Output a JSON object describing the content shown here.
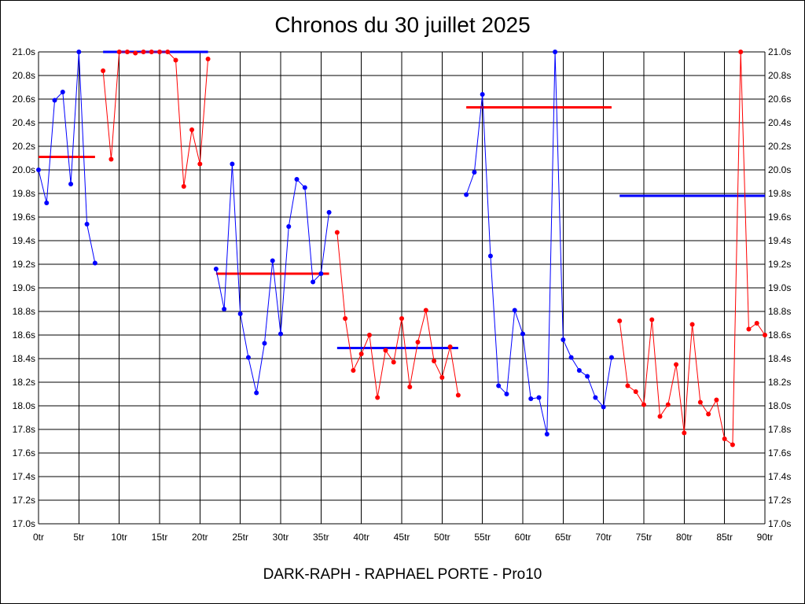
{
  "title": "Chronos du 30 juillet 2025",
  "footer": "DARK-RAPH - RAPHAEL PORTE - Pro10",
  "chart_data": {
    "type": "line",
    "title": "Chronos du 30 juillet 2025",
    "xlabel": "",
    "ylabel": "",
    "xlim": [
      0,
      90
    ],
    "ylim": [
      17.0,
      21.0
    ],
    "grid": true,
    "x_ticks": [
      "0tr",
      "5tr",
      "10tr",
      "15tr",
      "20tr",
      "25tr",
      "30tr",
      "35tr",
      "40tr",
      "45tr",
      "50tr",
      "55tr",
      "60tr",
      "65tr",
      "70tr",
      "75tr",
      "80tr",
      "85tr",
      "90tr"
    ],
    "y_ticks": [
      "17.0s",
      "17.2s",
      "17.4s",
      "17.6s",
      "17.8s",
      "18.0s",
      "18.2s",
      "18.4s",
      "18.6s",
      "18.8s",
      "19.0s",
      "19.2s",
      "19.4s",
      "19.6s",
      "19.8s",
      "20.0s",
      "20.2s",
      "20.4s",
      "20.6s",
      "20.8s",
      "21.0s"
    ],
    "colors": {
      "blue": "#0000ff",
      "red": "#ff0000"
    },
    "series": [
      {
        "color": "blue",
        "x": [
          0,
          1,
          2,
          3,
          4,
          5,
          6,
          7
        ],
        "y": [
          20.0,
          19.72,
          20.59,
          20.66,
          19.88,
          21.0,
          19.54,
          19.21
        ]
      },
      {
        "color": "red",
        "x": [
          8,
          9,
          10,
          11,
          12,
          13,
          14,
          15,
          16,
          17,
          18,
          19,
          20,
          21
        ],
        "y": [
          20.84,
          20.09,
          21.0,
          21.0,
          20.99,
          21.0,
          21.0,
          21.0,
          21.0,
          20.93,
          19.86,
          20.34,
          20.05,
          20.94
        ]
      },
      {
        "color": "blue",
        "x": [
          22,
          23,
          24,
          25,
          26,
          27,
          28,
          29,
          30,
          31,
          32,
          33,
          34,
          35,
          36
        ],
        "y": [
          19.16,
          18.82,
          20.05,
          18.78,
          18.41,
          18.11,
          18.53,
          19.23,
          18.61,
          19.52,
          19.92,
          19.85,
          19.05,
          19.12,
          19.64
        ]
      },
      {
        "color": "red",
        "x": [
          37,
          38,
          39,
          40,
          41,
          42,
          43,
          44,
          45,
          46,
          47,
          48,
          49,
          50,
          51,
          52
        ],
        "y": [
          19.47,
          18.74,
          18.3,
          18.44,
          18.6,
          18.07,
          18.47,
          18.37,
          18.74,
          18.16,
          18.54,
          18.81,
          18.38,
          18.24,
          18.5,
          18.09
        ]
      },
      {
        "color": "blue",
        "x": [
          53,
          54,
          55,
          56,
          57,
          58,
          59,
          60,
          61,
          62,
          63,
          64,
          65,
          66,
          67,
          68,
          69,
          70,
          71
        ],
        "y": [
          19.79,
          19.98,
          20.64,
          19.27,
          18.17,
          18.1,
          18.81,
          18.61,
          18.06,
          18.07,
          17.76,
          21.0,
          18.56,
          18.41,
          18.3,
          18.25,
          18.07,
          17.99,
          18.41
        ]
      },
      {
        "color": "red",
        "x": [
          72,
          73,
          74,
          75,
          76,
          77,
          78,
          79,
          80,
          81,
          82,
          83,
          84,
          85,
          86,
          87,
          88,
          89,
          90
        ],
        "y": [
          18.72,
          18.17,
          18.12,
          18.01,
          18.73,
          17.91,
          18.01,
          18.35,
          17.77,
          18.69,
          18.03,
          17.93,
          18.05,
          17.72,
          17.67,
          21.0,
          18.65,
          18.7,
          18.6
        ]
      }
    ],
    "average_lines": [
      {
        "color": "red",
        "x": [
          0,
          7
        ],
        "y": 20.11
      },
      {
        "color": "blue",
        "x": [
          8,
          21
        ],
        "y": 21.0
      },
      {
        "color": "red",
        "x": [
          22,
          36
        ],
        "y": 19.12
      },
      {
        "color": "blue",
        "x": [
          37,
          52
        ],
        "y": 18.49
      },
      {
        "color": "red",
        "x": [
          53,
          71
        ],
        "y": 20.53
      },
      {
        "color": "blue",
        "x": [
          72,
          90
        ],
        "y": 19.78
      }
    ]
  }
}
